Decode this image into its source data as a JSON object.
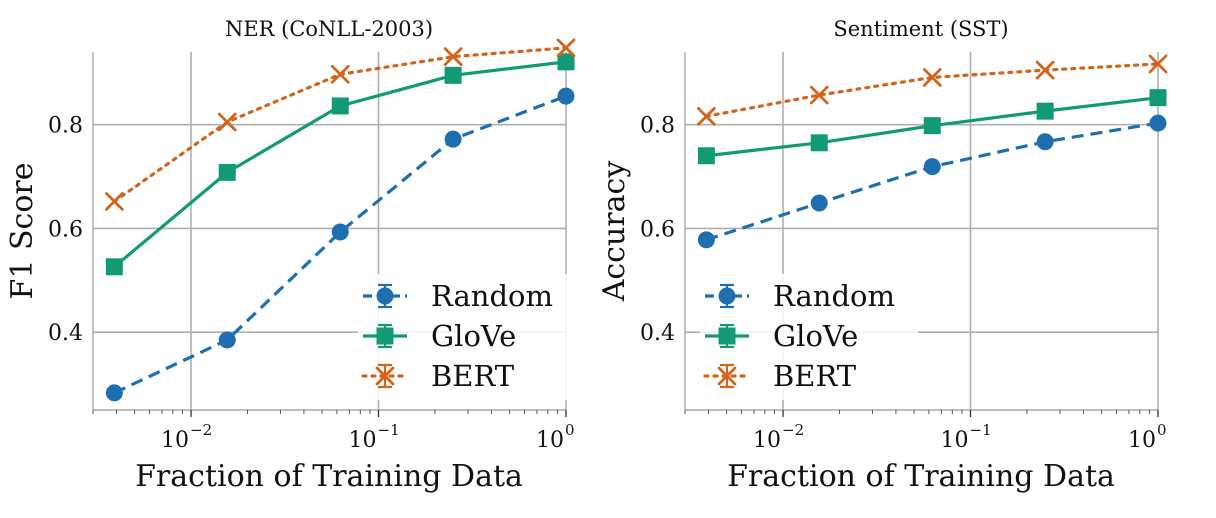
{
  "colors": {
    "random": "#1f6fb0",
    "glove": "#129a74",
    "bert": "#d3651b"
  },
  "chart_data": [
    {
      "type": "line",
      "title": "NER (CoNLL-2003)",
      "xlabel": "Fraction of Training Data",
      "ylabel": "F1 Score",
      "xscale": "log",
      "xlim": [
        0.003,
        1.0
      ],
      "ylim": [
        0.25,
        0.94
      ],
      "x": [
        0.0039,
        0.0156,
        0.0625,
        0.25,
        1.0
      ],
      "xticks": [
        0.01,
        0.1,
        1.0
      ],
      "xtick_labels": [
        {
          "base": "10",
          "exp": "−2"
        },
        {
          "base": "10",
          "exp": "−1"
        },
        {
          "base": "10",
          "exp": "0"
        }
      ],
      "yticks": [
        0.4,
        0.6,
        0.8
      ],
      "ytick_labels": [
        "0.4",
        "0.6",
        "0.8"
      ],
      "grid": true,
      "legend_position": "lower-right",
      "series": [
        {
          "name": "Random",
          "color_key": "random",
          "linestyle": "dashed",
          "marker": "circle",
          "values": [
            0.283,
            0.385,
            0.593,
            0.772,
            0.855
          ]
        },
        {
          "name": "GloVe",
          "color_key": "glove",
          "linestyle": "solid",
          "marker": "square",
          "values": [
            0.526,
            0.708,
            0.836,
            0.895,
            0.921
          ]
        },
        {
          "name": "BERT",
          "color_key": "bert",
          "linestyle": "dotted",
          "marker": "x",
          "values": [
            0.652,
            0.805,
            0.897,
            0.931,
            0.948
          ]
        }
      ]
    },
    {
      "type": "line",
      "title": "Sentiment (SST)",
      "xlabel": "Fraction of Training Data",
      "ylabel": "Accuracy",
      "xscale": "log",
      "xlim": [
        0.003,
        1.0
      ],
      "ylim": [
        0.25,
        0.94
      ],
      "x": [
        0.0039,
        0.0156,
        0.0625,
        0.25,
        1.0
      ],
      "xticks": [
        0.01,
        0.1,
        1.0
      ],
      "xtick_labels": [
        {
          "base": "10",
          "exp": "−2"
        },
        {
          "base": "10",
          "exp": "−1"
        },
        {
          "base": "10",
          "exp": "0"
        }
      ],
      "yticks": [
        0.4,
        0.6,
        0.8
      ],
      "ytick_labels": [
        "0.4",
        "0.6",
        "0.8"
      ],
      "grid": true,
      "legend_position": "lower-left",
      "series": [
        {
          "name": "Random",
          "color_key": "random",
          "linestyle": "dashed",
          "marker": "circle",
          "values": [
            0.578,
            0.649,
            0.719,
            0.767,
            0.803
          ]
        },
        {
          "name": "GloVe",
          "color_key": "glove",
          "linestyle": "solid",
          "marker": "square",
          "values": [
            0.74,
            0.765,
            0.798,
            0.826,
            0.852
          ]
        },
        {
          "name": "BERT",
          "color_key": "bert",
          "linestyle": "dotted",
          "marker": "x",
          "values": [
            0.816,
            0.857,
            0.891,
            0.905,
            0.917
          ]
        }
      ]
    }
  ]
}
